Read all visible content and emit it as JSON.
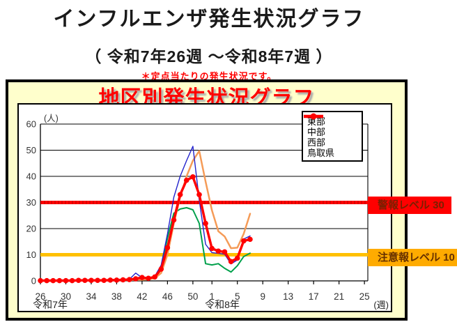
{
  "page": {
    "title": "インフルエンザ発生状況グラフ",
    "subtitle": "（ 令和7年26週 ～令和8年7週 ）",
    "note": "＊定点当たりの発生状況です。",
    "panel_title": "地区別発生状況グラフ"
  },
  "chart_data": {
    "type": "line",
    "title": "地区別発生状況グラフ",
    "y_unit_label": "(人)",
    "x_unit_label": "(週)",
    "era_labels": [
      {
        "text": "令和7年"
      },
      {
        "text": "令和8年"
      }
    ],
    "ylabel": "",
    "xlabel": "週",
    "ylim": [
      0,
      60
    ],
    "y_ticks": [
      0,
      10,
      20,
      30,
      40,
      50,
      60
    ],
    "grid": true,
    "legend_position": "top-right",
    "weeks": [
      "26",
      "27",
      "28",
      "29",
      "30",
      "31",
      "32",
      "33",
      "34",
      "35",
      "36",
      "37",
      "38",
      "39",
      "40",
      "41",
      "42",
      "43",
      "44",
      "45",
      "46",
      "47",
      "48",
      "49",
      "50",
      "51",
      "52",
      "1",
      "2",
      "3",
      "4",
      "5",
      "6",
      "7"
    ],
    "x_axis_total_positions": 52,
    "x_ticks": [
      {
        "label": "26",
        "i": 0
      },
      {
        "label": "30",
        "i": 4
      },
      {
        "label": "34",
        "i": 8
      },
      {
        "label": "38",
        "i": 12
      },
      {
        "label": "42",
        "i": 16
      },
      {
        "label": "46",
        "i": 20
      },
      {
        "label": "50",
        "i": 24
      },
      {
        "label": "1",
        "i": 27
      },
      {
        "label": "5",
        "i": 31
      },
      {
        "label": "9",
        "i": 35
      },
      {
        "label": "13",
        "i": 39
      },
      {
        "label": "17",
        "i": 43
      },
      {
        "label": "21",
        "i": 47
      },
      {
        "label": "25",
        "i": 51
      }
    ],
    "series": [
      {
        "id": "eastern",
        "name": "東部",
        "color": "#00a04b",
        "width": 2,
        "marker": false,
        "values": [
          0.2,
          0.2,
          0.2,
          0.2,
          0.2,
          0.2,
          0.2,
          0.2,
          0.2,
          0.2,
          0.2,
          0.2,
          0.2,
          0.2,
          0.2,
          0.5,
          0.6,
          0.6,
          1.2,
          4.8,
          16.4,
          25.9,
          27.5,
          28,
          27.2,
          22,
          6.6,
          6.1,
          6.6,
          4.8,
          3.4,
          5.8,
          9.3,
          10.6
        ]
      },
      {
        "id": "central",
        "name": "中部",
        "color": "#f59b57",
        "width": 2.5,
        "marker": false,
        "values": [
          0.1,
          0.1,
          0.1,
          0.1,
          0.1,
          0.1,
          0.1,
          0.1,
          0.1,
          0.2,
          0.2,
          0.2,
          0.2,
          0.3,
          0.3,
          0.4,
          0.4,
          0.6,
          1.0,
          3.0,
          10,
          22,
          32,
          40,
          46,
          49.7,
          38,
          27,
          19,
          17,
          12.5,
          12.7,
          18,
          25.7
        ]
      },
      {
        "id": "western",
        "name": "西部",
        "color": "#2222cc",
        "width": 1.4,
        "marker": false,
        "values": [
          0.2,
          0.2,
          0.2,
          0.2,
          0.2,
          0.2,
          0.2,
          0.2,
          0.3,
          0.3,
          0.3,
          0.3,
          0.4,
          0.5,
          0.6,
          3.0,
          1.2,
          1.0,
          1.8,
          6.0,
          18,
          32,
          40,
          46,
          51.5,
          31,
          14,
          10.8,
          10.5,
          10.2,
          6.5,
          8.0,
          16,
          17.2
        ]
      },
      {
        "id": "tottori",
        "name": "鳥取県",
        "color": "#ff0000",
        "width": 3.5,
        "marker": true,
        "values": [
          0.1,
          0.1,
          0.1,
          0.1,
          0.1,
          0.1,
          0.2,
          0.2,
          0.2,
          0.2,
          0.2,
          0.3,
          0.3,
          0.4,
          0.5,
          0.8,
          1.3,
          1.0,
          1.5,
          4.5,
          12.7,
          23.3,
          33,
          38.5,
          39.8,
          33,
          22,
          12.4,
          11.4,
          11.1,
          7.4,
          8.7,
          15.3,
          15.9
        ]
      }
    ],
    "thresholds": [
      {
        "id": "warning",
        "label": "警報レベル 30",
        "value": 30,
        "line_color": "#ff0000",
        "box_bg": "#ff0000",
        "text_color": "#7a1f00"
      },
      {
        "id": "caution",
        "label": "注意報レベル 10",
        "value": 10,
        "line_color": "#ffc000",
        "box_bg": "#ffab00",
        "text_color": "#653000"
      }
    ]
  }
}
